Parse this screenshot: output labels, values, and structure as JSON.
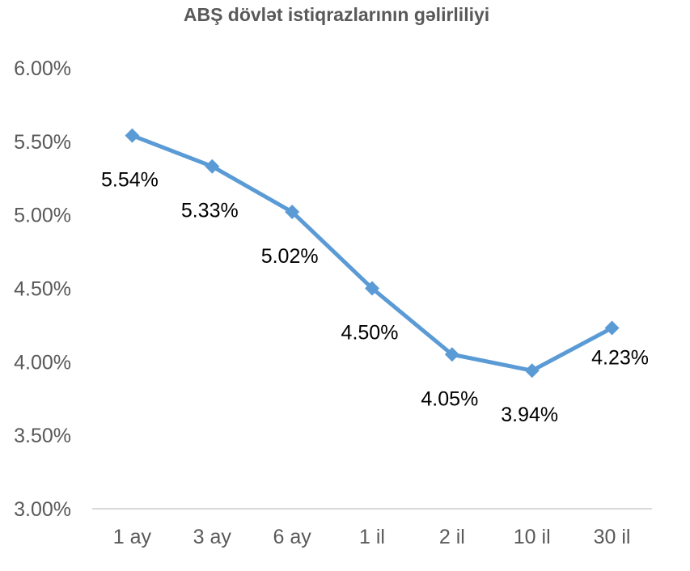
{
  "chart_data": {
    "type": "line",
    "title": "ABŞ dövlət istiqrazlarının gəlirliliyi",
    "categories": [
      "1 ay",
      "3 ay",
      "6 ay",
      "1 il",
      "2 il",
      "10 il",
      "30 il"
    ],
    "series": [
      {
        "values": [
          5.54,
          5.33,
          5.02,
          4.5,
          4.05,
          3.94,
          4.23
        ],
        "data_labels": [
          "5.54%",
          "5.33%",
          "5.02%",
          "4.50%",
          "4.05%",
          "3.94%",
          "4.23%"
        ],
        "color": "#5B9BD5",
        "marker": "diamond"
      }
    ],
    "ylim": [
      3.0,
      6.0
    ],
    "yticks": [
      3.0,
      3.5,
      4.0,
      4.5,
      5.0,
      5.5,
      6.0
    ],
    "ytick_labels": [
      "3.00%",
      "3.50%",
      "4.00%",
      "4.50%",
      "5.00%",
      "5.50%",
      "6.00%"
    ],
    "grid": false,
    "legend": "none",
    "axis_color": "#D9D9D9"
  }
}
